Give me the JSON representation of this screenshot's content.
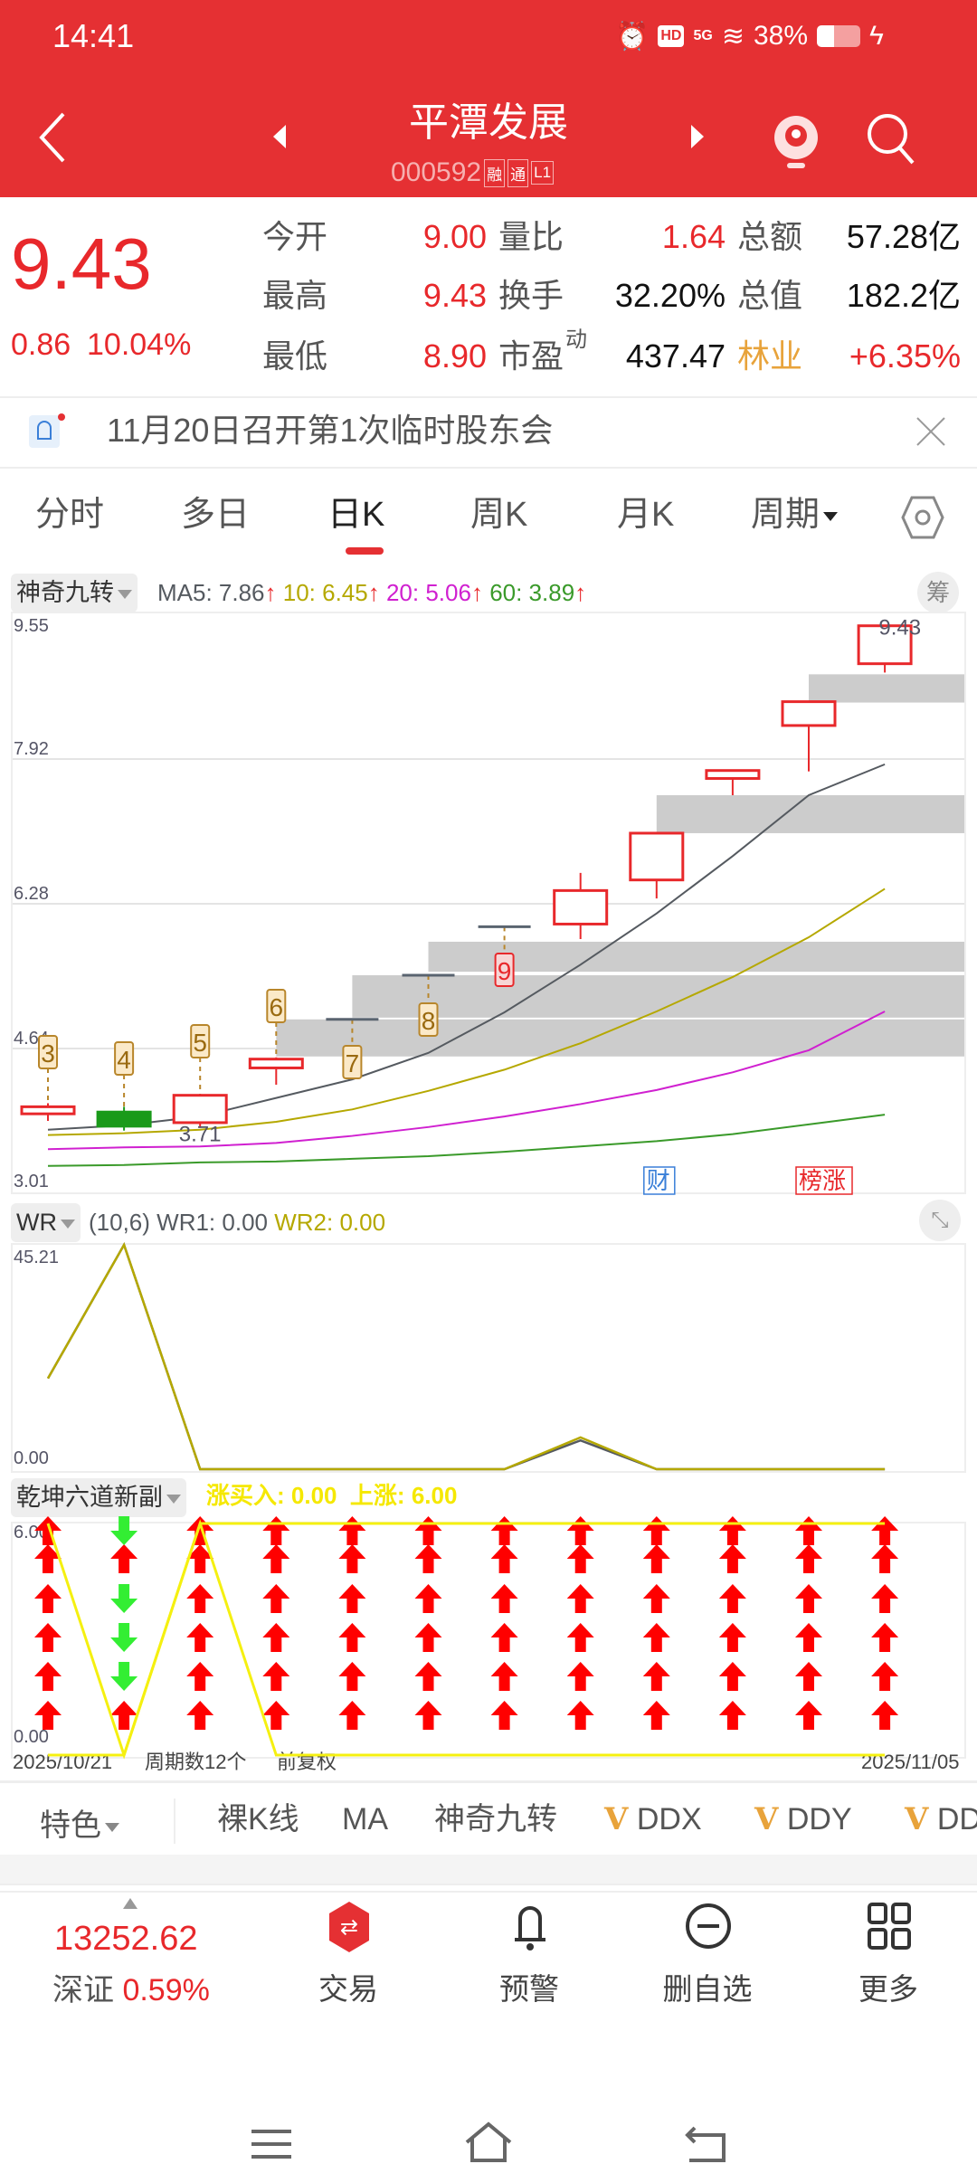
{
  "status_bar": {
    "time": "14:41",
    "network": "5G",
    "battery": "38%",
    "icons": [
      "alarm-icon",
      "hd-icon",
      "signal-icon",
      "wifi-icon",
      "battery-icon",
      "charging-icon"
    ]
  },
  "header": {
    "title": "平潭发展",
    "code": "000592",
    "badges": [
      "融",
      "通",
      "L1"
    ]
  },
  "quote": {
    "price": "9.43",
    "change": "0.86",
    "change_pct": "10.04%",
    "stats": [
      [
        {
          "label": "今开",
          "value": "9.00",
          "color": "#E8282B"
        },
        {
          "label": "量比",
          "value": "1.64",
          "color": "#E8282B"
        },
        {
          "label": "总额",
          "value": "57.28亿",
          "color": "#111111"
        }
      ],
      [
        {
          "label": "最高",
          "value": "9.43",
          "color": "#E8282B"
        },
        {
          "label": "换手",
          "value": "32.20%",
          "color": "#111111"
        },
        {
          "label": "总值",
          "value": "182.2亿",
          "color": "#111111"
        }
      ],
      [
        {
          "label": "最低",
          "value": "8.90",
          "color": "#E8282B"
        },
        {
          "label": "市盈",
          "sup": "动",
          "value": "437.47",
          "color": "#111111"
        },
        {
          "label": "林业",
          "value": "+6.35%",
          "color": "#E8282B",
          "label_color": "#E8A33B"
        }
      ]
    ]
  },
  "notice": {
    "text": "11月20日召开第1次临时股东会"
  },
  "period_tabs": [
    {
      "label": "分时"
    },
    {
      "label": "多日"
    },
    {
      "label": "日K",
      "active": true
    },
    {
      "label": "周K"
    },
    {
      "label": "月K"
    },
    {
      "label": "周期"
    }
  ],
  "main_panel": {
    "indicator": "神奇九转",
    "ma": {
      "ma5": "MA5: 7.86",
      "ma10": "10: 6.45",
      "ma20": "20: 5.06",
      "ma60": "60: 3.89"
    },
    "chip_button": "筹",
    "y_ticks": [
      "9.55",
      "7.92",
      "6.28",
      "4.64",
      "3.01"
    ],
    "high_label": "9.43",
    "low_label": "3.71",
    "markers": [
      "财",
      "榜涨"
    ]
  },
  "wr_panel": {
    "indicator": "WR",
    "params": "(10,6)",
    "wr1": "WR1: 0.00",
    "wr2": "WR2: 0.00",
    "y_ticks": [
      "45.21",
      "0.00"
    ]
  },
  "qk_panel": {
    "indicator": "乾坤六道新副",
    "values": "涨买入: 0.00  上涨: 6.00",
    "y_ticks": [
      "6.00",
      "0.00"
    ]
  },
  "footer_row": {
    "start_date": "2025/10/21",
    "cycles": "周期数12个",
    "adjust": "前复权",
    "end_date": "2025/11/05"
  },
  "indicator_tabs": {
    "feature": "特色",
    "items": [
      "裸K线",
      "MA",
      "神奇九转",
      "DDX",
      "DDY",
      "DD"
    ],
    "v_mark": "V"
  },
  "bottom_nav": {
    "index_value": "13252.62",
    "index_name": "深证",
    "index_pct": "0.59%",
    "items": [
      "交易",
      "预警",
      "删自选",
      "更多"
    ]
  },
  "colors": {
    "brand": "#E53033",
    "up": "#E8282B",
    "down": "#1A9A1A",
    "ma5": "#555a60",
    "ma10": "#B5A800",
    "ma20": "#D020D0",
    "ma60": "#3A9A2A",
    "gap": "#CCCCCC",
    "wr2": "#B5A800",
    "qk": "#F5F010"
  },
  "chart_data": [
    {
      "type": "candlestick",
      "y_range": [
        3.01,
        9.55
      ],
      "candles": [
        {
          "o": 3.9,
          "h": 4.02,
          "l": 3.82,
          "c": 3.98
        },
        {
          "o": 3.92,
          "h": 3.98,
          "l": 3.71,
          "c": 3.76
        },
        {
          "o": 3.8,
          "h": 4.11,
          "l": 3.74,
          "c": 4.11
        },
        {
          "o": 4.42,
          "h": 4.54,
          "l": 4.23,
          "c": 4.52
        },
        {
          "o": 4.97,
          "h": 4.97,
          "l": 4.97,
          "c": 4.97
        },
        {
          "o": 5.47,
          "h": 5.47,
          "l": 5.47,
          "c": 5.47
        },
        {
          "o": 6.02,
          "h": 6.02,
          "l": 6.02,
          "c": 6.02
        },
        {
          "o": 6.05,
          "h": 6.63,
          "l": 5.88,
          "c": 6.43
        },
        {
          "o": 6.55,
          "h": 7.08,
          "l": 6.34,
          "c": 7.08
        },
        {
          "o": 7.7,
          "h": 7.8,
          "l": 7.51,
          "c": 7.79
        },
        {
          "o": 8.3,
          "h": 8.57,
          "l": 7.78,
          "c": 8.57
        },
        {
          "o": 9.0,
          "h": 9.43,
          "l": 8.9,
          "c": 9.43
        }
      ],
      "ma5": [
        3.72,
        3.77,
        3.87,
        4.08,
        4.29,
        4.59,
        5.05,
        5.59,
        6.17,
        6.82,
        7.51,
        7.86
      ],
      "ma10": [
        3.66,
        3.68,
        3.72,
        3.81,
        3.95,
        4.16,
        4.4,
        4.7,
        5.06,
        5.45,
        5.9,
        6.45
      ],
      "ma20": [
        3.5,
        3.52,
        3.53,
        3.57,
        3.65,
        3.75,
        3.87,
        4.01,
        4.17,
        4.37,
        4.62,
        5.06
      ],
      "ma60": [
        3.31,
        3.32,
        3.35,
        3.36,
        3.39,
        3.42,
        3.47,
        3.53,
        3.59,
        3.67,
        3.78,
        3.89
      ],
      "gaps": [
        {
          "from": 3,
          "low": 4.55,
          "high": 4.97
        },
        {
          "from": 4,
          "low": 4.99,
          "high": 5.47
        },
        {
          "from": 5,
          "low": 5.51,
          "high": 5.85
        },
        {
          "from": 8,
          "low": 7.08,
          "high": 7.51
        },
        {
          "from": 10,
          "low": 8.56,
          "high": 8.88
        }
      ],
      "nine_turn": [
        {
          "i": 0,
          "n": "3"
        },
        {
          "i": 1,
          "n": "4"
        },
        {
          "i": 2,
          "n": "5"
        },
        {
          "i": 3,
          "n": "6"
        },
        {
          "i": 4,
          "n": "7"
        },
        {
          "i": 5,
          "n": "8"
        },
        {
          "i": 6,
          "n": "9"
        }
      ],
      "markers": [
        {
          "i": 8,
          "key": 0,
          "color": "#3A7FD8"
        },
        {
          "i": 10,
          "key": 1,
          "color": "#E8282B"
        }
      ]
    },
    {
      "type": "line",
      "y_range": [
        0,
        45.21
      ],
      "series": [
        {
          "name": "WR1",
          "values": [
            18.3,
            45.21,
            0,
            0,
            0,
            0,
            0,
            5.8,
            0,
            0,
            0,
            0
          ]
        },
        {
          "name": "WR2",
          "values": [
            18.3,
            45.21,
            0,
            0,
            0,
            0,
            0,
            6.4,
            0,
            0,
            0,
            0
          ]
        }
      ]
    },
    {
      "type": "signal",
      "y_range": [
        0,
        6
      ],
      "series": [
        {
          "name": "上涨",
          "values": [
            6,
            0,
            6,
            6,
            6,
            6,
            6,
            6,
            6,
            6,
            6,
            6
          ]
        },
        {
          "name": "涨买入",
          "values": [
            0,
            0,
            6,
            0,
            0,
            0,
            0,
            0,
            0,
            0,
            0,
            0
          ]
        }
      ],
      "arrows": [
        [
          "up",
          "up",
          "up",
          "up",
          "up",
          "up"
        ],
        [
          "up",
          "down",
          "down",
          "down",
          "up",
          "down"
        ],
        [
          "up",
          "up",
          "up",
          "up",
          "up",
          "up"
        ],
        [
          "up",
          "up",
          "up",
          "up",
          "up",
          "up"
        ],
        [
          "up",
          "up",
          "up",
          "up",
          "up",
          "up"
        ],
        [
          "up",
          "up",
          "up",
          "up",
          "up",
          "up"
        ],
        [
          "up",
          "up",
          "up",
          "up",
          "up",
          "up"
        ],
        [
          "up",
          "up",
          "up",
          "up",
          "up",
          "up"
        ],
        [
          "up",
          "up",
          "up",
          "up",
          "up",
          "up"
        ],
        [
          "up",
          "up",
          "up",
          "up",
          "up",
          "up"
        ],
        [
          "up",
          "up",
          "up",
          "up",
          "up",
          "up"
        ],
        [
          "up",
          "up",
          "up",
          "up",
          "up",
          "up"
        ]
      ]
    }
  ]
}
